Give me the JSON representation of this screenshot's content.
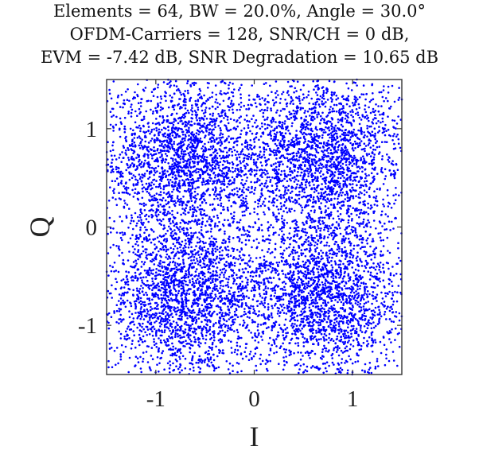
{
  "chart_data": {
    "type": "scatter",
    "title_lines": [
      "Elements = 64, BW = 20.0%, Angle = 30.0°",
      "OFDM-Carriers = 128, SNR/CH = 0 dB,",
      "EVM = -7.42 dB, SNR Degradation = 10.65 dB"
    ],
    "xlabel": "I",
    "ylabel": "Q",
    "xlim": [
      -1.5,
      1.5
    ],
    "ylim": [
      -1.5,
      1.5
    ],
    "xticks": [
      -1,
      0,
      1
    ],
    "yticks": [
      -1,
      0,
      1
    ],
    "grid": false,
    "marker_color": "#0000ff",
    "constellation_centers": [
      {
        "x": -0.707,
        "y": 0.707
      },
      {
        "x": 0.707,
        "y": 0.707
      },
      {
        "x": -0.707,
        "y": -0.707
      },
      {
        "x": 0.707,
        "y": -0.707
      }
    ],
    "noise_std": 0.42
  }
}
